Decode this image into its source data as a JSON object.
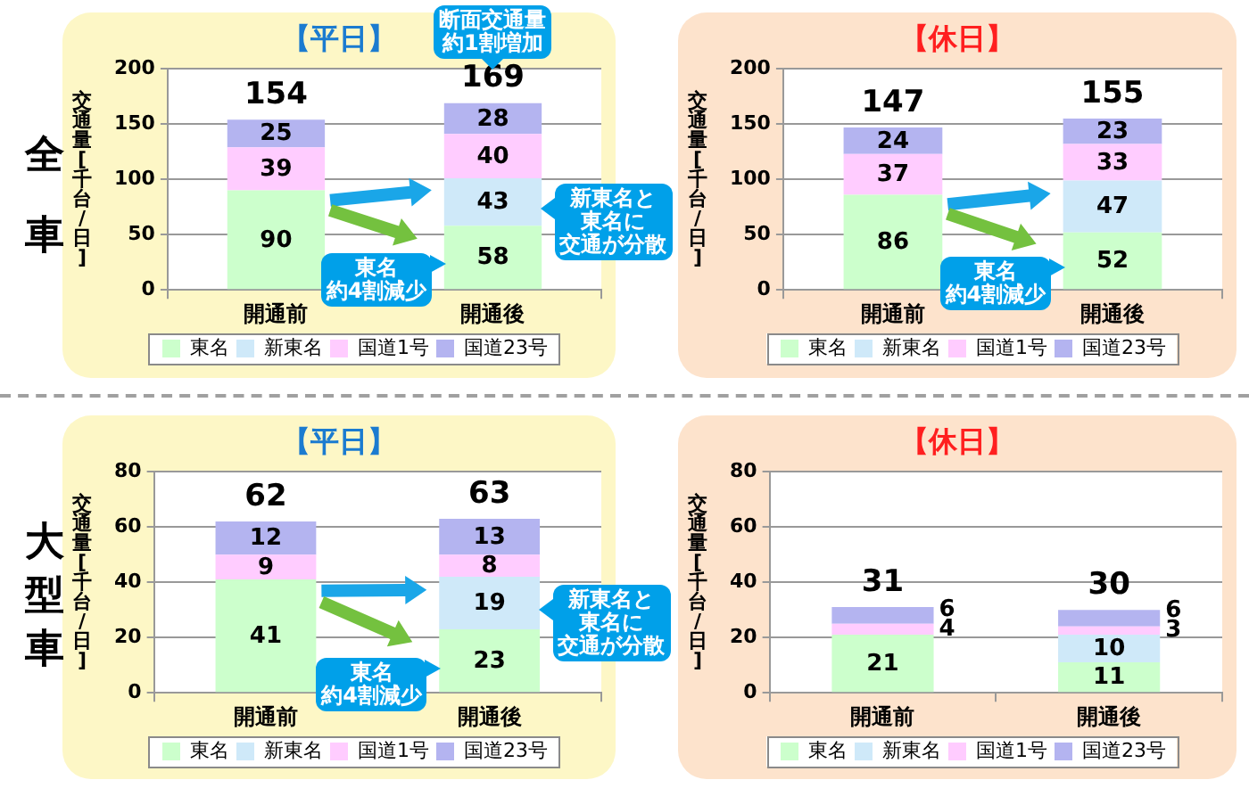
{
  "chart_data": [
    {
      "type": "bar",
      "title": "【平日】",
      "ylabel": "交通量[千台/日]",
      "categories": [
        "開通前",
        "開通後"
      ],
      "stacked": true,
      "series": [
        {
          "name": "東名",
          "color": "#ccffcc",
          "values": [
            90,
            58
          ]
        },
        {
          "name": "新東名",
          "color": "#cfe9f9",
          "values": [
            null,
            43
          ]
        },
        {
          "name": "国道1号",
          "color": "#ffccff",
          "values": [
            39,
            40
          ]
        },
        {
          "name": "国道23号",
          "color": "#b4b4f0",
          "values": [
            25,
            28
          ]
        }
      ],
      "ylim": [
        0,
        200
      ],
      "yticks": [
        0,
        50,
        100,
        150,
        200
      ],
      "grid": "y",
      "legend": "bottom",
      "data_labels": true,
      "totals": [
        "154",
        "169"
      ],
      "annotations": [
        "全車",
        "断面交通量約1割増加",
        "新東名と東名に交通が分散",
        "東名約4割減少"
      ]
    },
    {
      "type": "bar",
      "title": "【休日】",
      "ylabel": "交通量[千台/日]",
      "categories": [
        "開通前",
        "開通後"
      ],
      "stacked": true,
      "series": [
        {
          "name": "東名",
          "color": "#ccffcc",
          "values": [
            86,
            52
          ]
        },
        {
          "name": "新東名",
          "color": "#cfe9f9",
          "values": [
            null,
            47
          ]
        },
        {
          "name": "国道1号",
          "color": "#ffccff",
          "values": [
            37,
            33
          ]
        },
        {
          "name": "国道23号",
          "color": "#b4b4f0",
          "values": [
            24,
            23
          ]
        }
      ],
      "ylim": [
        0,
        200
      ],
      "yticks": [
        0,
        50,
        100,
        150,
        200
      ],
      "grid": "y",
      "legend": "bottom",
      "data_labels": true,
      "totals": [
        "147",
        "155"
      ],
      "annotations": [
        "東名約4割減少"
      ]
    },
    {
      "type": "bar",
      "title": "【平日】",
      "ylabel": "交通量[千台/日]",
      "categories": [
        "開通前",
        "開通後"
      ],
      "stacked": true,
      "series": [
        {
          "name": "東名",
          "color": "#ccffcc",
          "values": [
            41,
            23
          ]
        },
        {
          "name": "新東名",
          "color": "#cfe9f9",
          "values": [
            null,
            19
          ]
        },
        {
          "name": "国道1号",
          "color": "#ffccff",
          "values": [
            9,
            8
          ]
        },
        {
          "name": "国道23号",
          "color": "#b4b4f0",
          "values": [
            12,
            13
          ]
        }
      ],
      "ylim": [
        0,
        80
      ],
      "yticks": [
        0,
        20,
        40,
        60,
        80
      ],
      "grid": "y",
      "legend": "bottom",
      "data_labels": true,
      "totals": [
        "62",
        "63"
      ],
      "annotations": [
        "大型車",
        "新東名と東名に交通が分散",
        "東名約4割減少"
      ]
    },
    {
      "type": "bar",
      "title": "【休日】",
      "ylabel": "交通量[千台/日]",
      "categories": [
        "開通前",
        "開通後"
      ],
      "stacked": true,
      "series": [
        {
          "name": "東名",
          "color": "#ccffcc",
          "values": [
            21,
            11
          ]
        },
        {
          "name": "新東名",
          "color": "#cfe9f9",
          "values": [
            null,
            10
          ]
        },
        {
          "name": "国道1号",
          "color": "#ffccff",
          "values": [
            4,
            3
          ]
        },
        {
          "name": "国道23号",
          "color": "#b4b4f0",
          "values": [
            6,
            6
          ]
        }
      ],
      "ylim": [
        0,
        80
      ],
      "yticks": [
        0,
        20,
        40,
        60,
        80
      ],
      "grid": "y",
      "legend": "bottom",
      "data_labels": true,
      "totals": [
        "31",
        "30"
      ]
    }
  ]
}
